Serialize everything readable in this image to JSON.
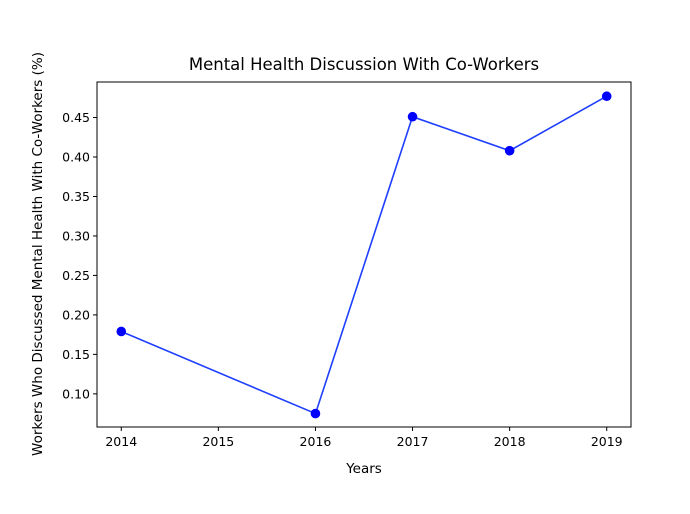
{
  "chart_data": {
    "type": "line",
    "title": "Mental Health Discussion With Co-Workers",
    "xlabel": "Years",
    "ylabel": "Workers Who Discussed Mental Health With Co-Workers (%)",
    "x": [
      2014,
      2016,
      2017,
      2018,
      2019
    ],
    "series": [
      {
        "values": [
          0.179,
          0.075,
          0.451,
          0.408,
          0.477
        ],
        "color": "#0000ff",
        "line_color": "#1f3fff"
      }
    ],
    "xlim": [
      2013.75,
      2019.25
    ],
    "ylim": [
      0.058,
      0.495
    ],
    "xticks": [
      "2014",
      "2015",
      "2016",
      "2017",
      "2018",
      "2019"
    ],
    "yticks": [
      "0.10",
      "0.15",
      "0.20",
      "0.25",
      "0.30",
      "0.35",
      "0.40",
      "0.45"
    ],
    "grid": false,
    "legend": false
  }
}
